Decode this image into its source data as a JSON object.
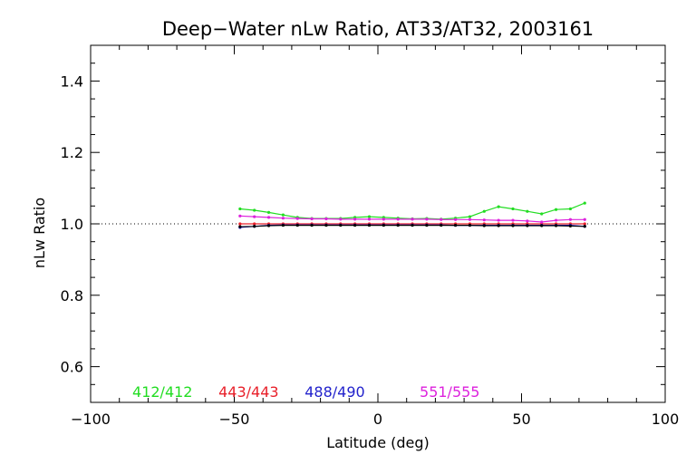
{
  "chart_data": {
    "type": "line",
    "title": "Deep−Water nLw Ratio, AT33/AT32, 2003161",
    "xlabel": "Latitude (deg)",
    "ylabel": "nLw Ratio",
    "xlim": [
      -100,
      100
    ],
    "ylim": [
      0.5,
      1.5
    ],
    "x_ticks": [
      -100,
      -50,
      0,
      50,
      100
    ],
    "x_tick_labels": [
      "−100",
      "−50",
      "0",
      "50",
      "100"
    ],
    "y_ticks": [
      0.6,
      0.8,
      1.0,
      1.2,
      1.4
    ],
    "y_tick_labels": [
      "0.6",
      "0.8",
      "1.0",
      "1.2",
      "1.4"
    ],
    "reference_line": {
      "y": 1.0,
      "style": "dotted"
    },
    "grid": false,
    "legend_placement": "bottom",
    "x": [
      -48,
      -43,
      -38,
      -33,
      -28,
      -23,
      -18,
      -13,
      -8,
      -3,
      2,
      7,
      12,
      17,
      22,
      27,
      32,
      37,
      42,
      47,
      52,
      57,
      62,
      67,
      72
    ],
    "series": [
      {
        "name": "412/412",
        "color": "#22dd22",
        "values": [
          1.042,
          1.038,
          1.032,
          1.025,
          1.018,
          1.015,
          1.015,
          1.015,
          1.018,
          1.02,
          1.018,
          1.016,
          1.014,
          1.015,
          1.013,
          1.016,
          1.02,
          1.035,
          1.048,
          1.042,
          1.035,
          1.028,
          1.04,
          1.042,
          1.058
        ]
      },
      {
        "name": "443/443",
        "color": "#e8202a",
        "values": [
          1.0,
          1.0,
          1.0,
          1.0,
          1.0,
          1.0,
          1.0,
          1.0,
          1.0,
          1.0,
          1.0,
          1.0,
          1.0,
          1.0,
          1.0,
          1.0,
          1.0,
          1.0,
          1.0,
          1.0,
          1.0,
          1.0,
          1.0,
          1.0,
          1.0
        ]
      },
      {
        "name": "488/490",
        "color": "#2222cc",
        "values": [
          0.99,
          0.993,
          0.996,
          0.997,
          0.997,
          0.997,
          0.997,
          0.997,
          0.997,
          0.997,
          0.997,
          0.997,
          0.997,
          0.997,
          0.997,
          0.996,
          0.996,
          0.996,
          0.996,
          0.996,
          0.996,
          0.996,
          0.996,
          0.996,
          0.993
        ]
      },
      {
        "name": "551/555",
        "color": "#dd22dd",
        "values": [
          1.022,
          1.02,
          1.018,
          1.016,
          1.015,
          1.014,
          1.014,
          1.013,
          1.013,
          1.013,
          1.013,
          1.013,
          1.013,
          1.013,
          1.012,
          1.012,
          1.012,
          1.011,
          1.01,
          1.01,
          1.008,
          1.005,
          1.01,
          1.012,
          1.012
        ]
      }
    ],
    "overlay": {
      "color": "#000000",
      "values": [
        0.992,
        0.993,
        0.995,
        0.996,
        0.996,
        0.996,
        0.996,
        0.996,
        0.996,
        0.996,
        0.996,
        0.996,
        0.996,
        0.996,
        0.996,
        0.996,
        0.996,
        0.995,
        0.995,
        0.995,
        0.995,
        0.995,
        0.995,
        0.994,
        0.993
      ]
    }
  }
}
